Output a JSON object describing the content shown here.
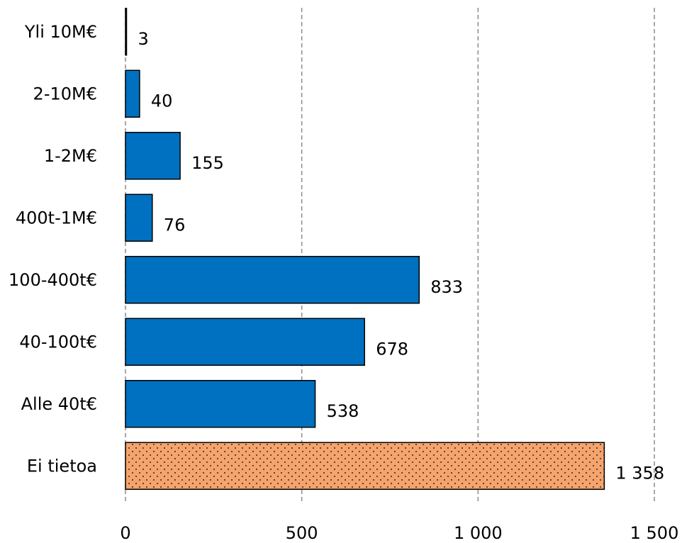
{
  "chart_data": {
    "type": "bar",
    "orientation": "horizontal",
    "title": "",
    "xlabel": "",
    "ylabel": "",
    "categories": [
      "Yli 10M€",
      "2-10M€",
      "1-2M€",
      "400t-1M€",
      "100-400t€",
      "40-100t€",
      "Alle 40t€",
      "Ei tietoa"
    ],
    "values": [
      3,
      40,
      155,
      76,
      833,
      678,
      538,
      1358
    ],
    "value_labels": [
      "3",
      "40",
      "155",
      "76",
      "833",
      "678",
      "538",
      "1 358"
    ],
    "xlim": [
      0,
      1500
    ],
    "xticks": [
      0,
      500,
      1000,
      1500
    ],
    "xtick_labels": [
      "0",
      "500",
      "1 000",
      "1 500"
    ],
    "grid": "vertical dashed",
    "legend": "none",
    "bar_color": "#0070C0",
    "highlight_category": "Ei tietoa",
    "highlight_color": "#F4A46C",
    "highlight_pattern": "dotted"
  }
}
